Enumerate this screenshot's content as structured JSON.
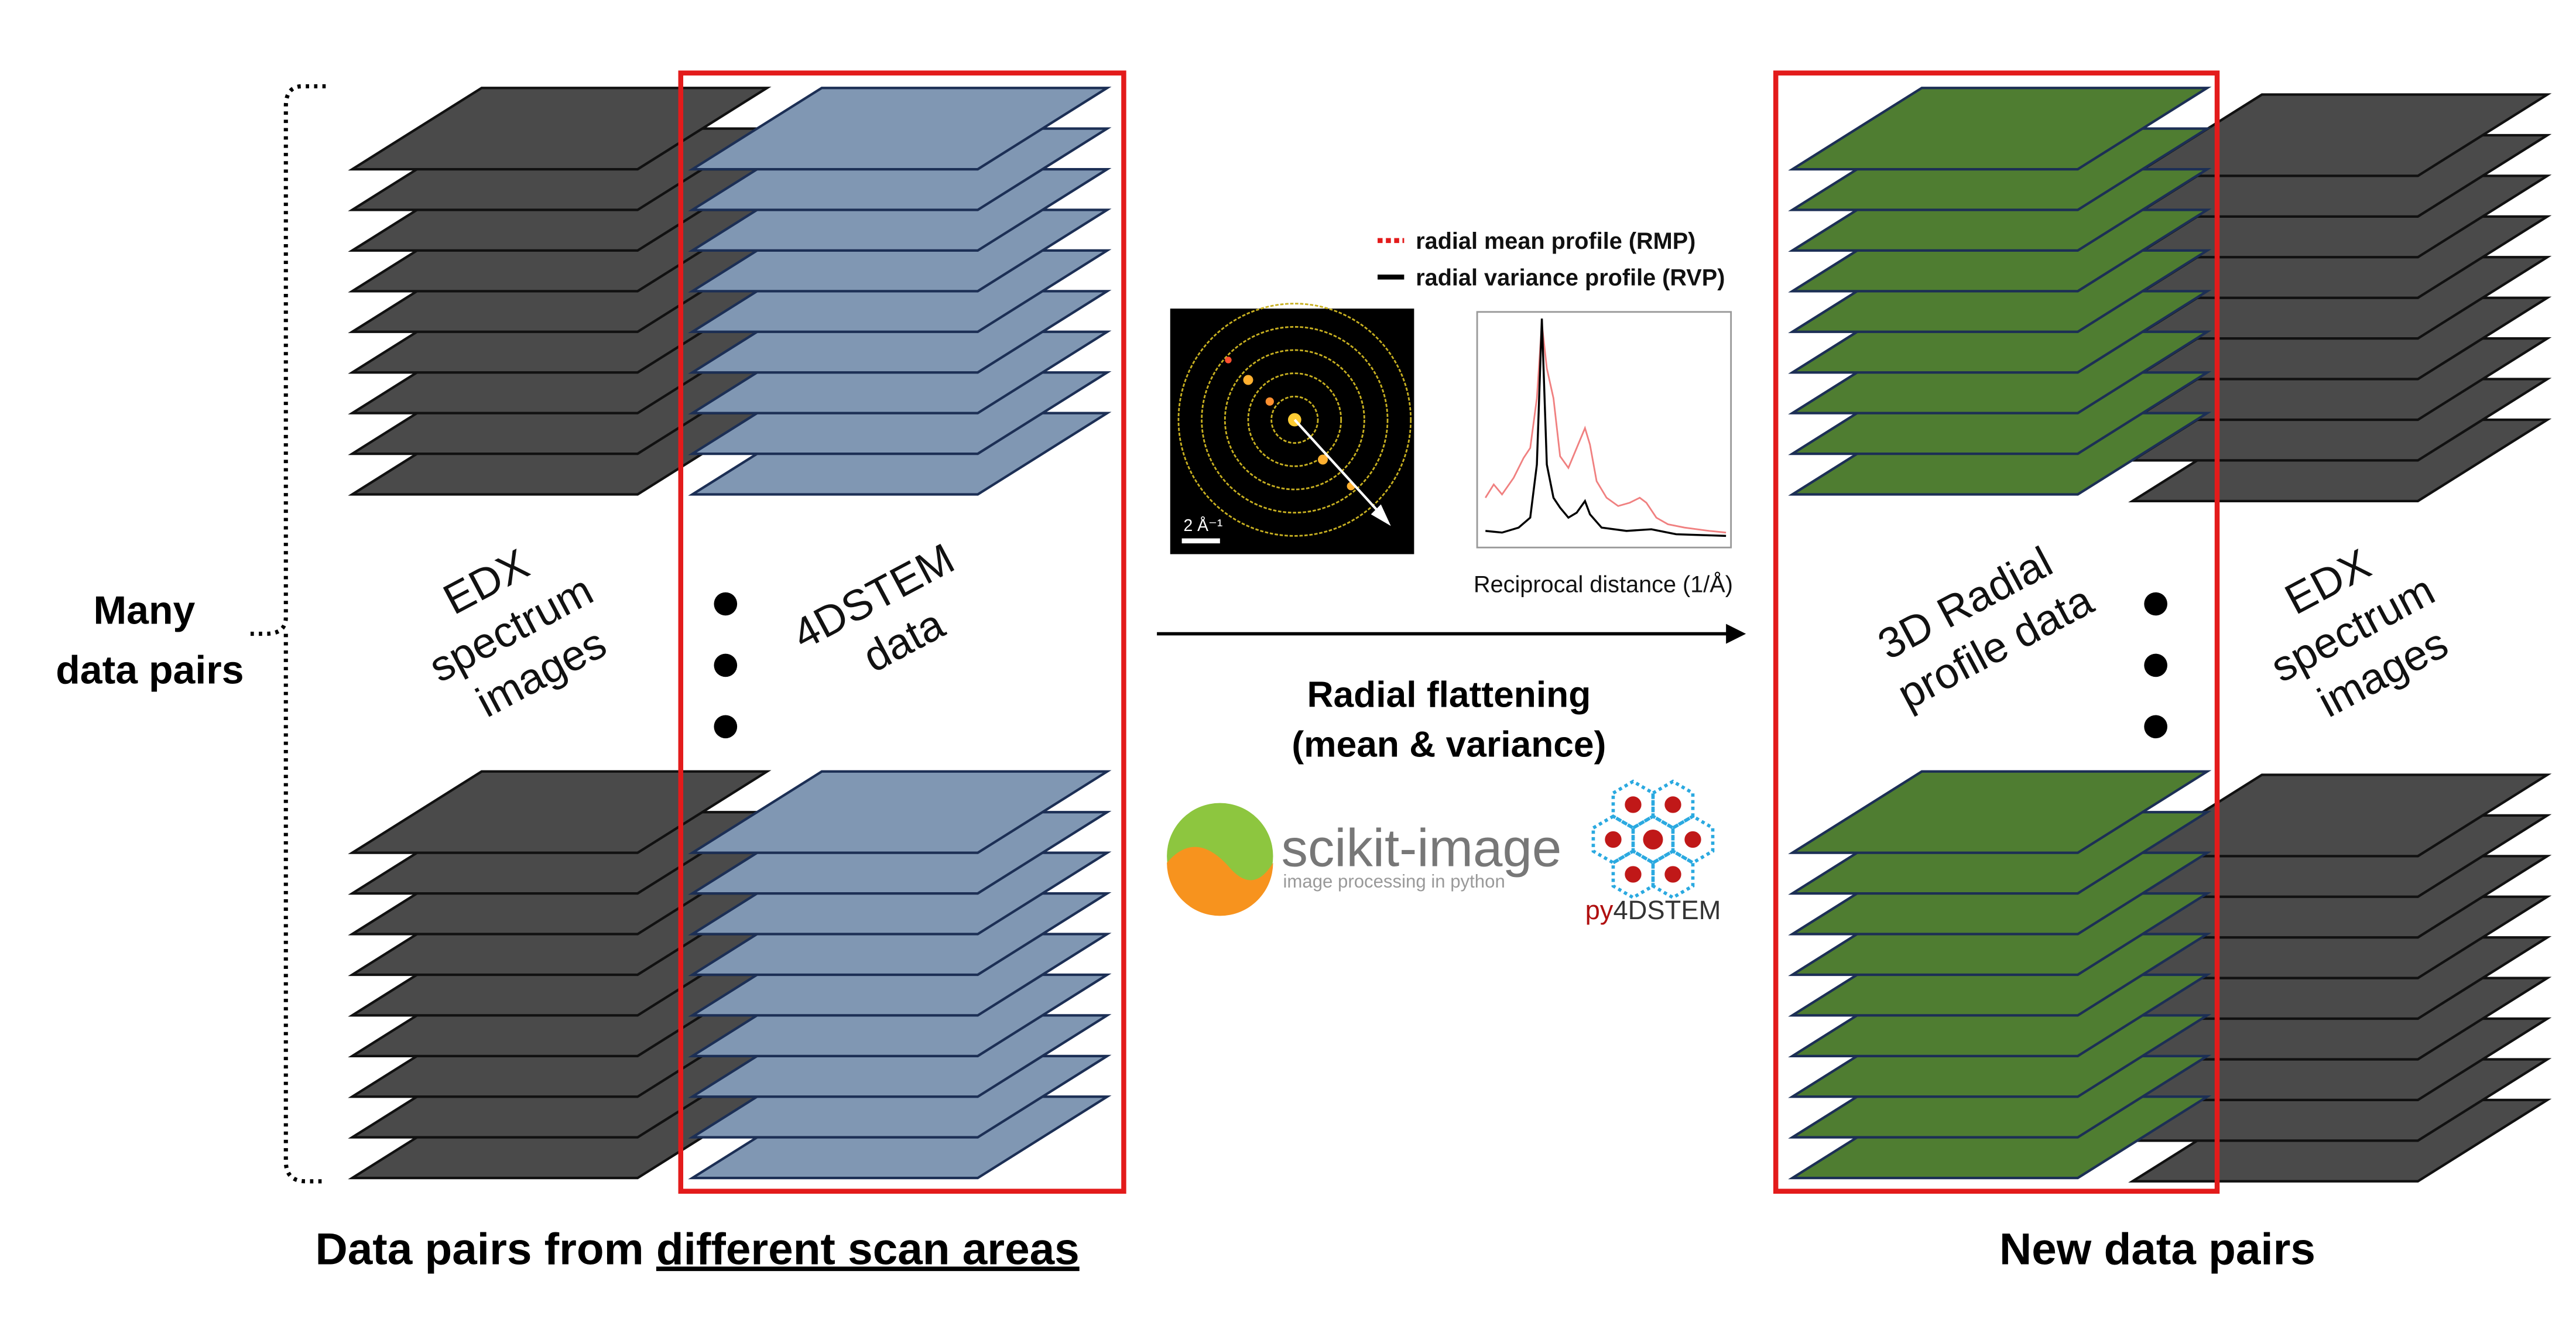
{
  "left_group": {
    "side_label": [
      "Many",
      "data pairs"
    ],
    "edx_label": [
      "EDX",
      "spectrum",
      "images"
    ],
    "fourdstem_label": [
      "4DSTEM",
      "data"
    ],
    "caption": {
      "prefix": "Data pairs from ",
      "underlined": "different scan areas"
    }
  },
  "process": {
    "legend": [
      "radial mean profile (RMP)",
      "radial variance profile (RVP)"
    ],
    "scale_bar": "2 Å⁻¹",
    "x_axis_label": "Reciprocal distance (1/Å)",
    "title": [
      "Radial flattening",
      "(mean & variance)"
    ],
    "scikit_image": {
      "name": "scikit-image",
      "tagline": "image processing in python"
    },
    "py4dstem": {
      "prefix": "py",
      "suffix": "4DSTEM"
    }
  },
  "right_group": {
    "radial_label": [
      "3D Radial",
      "profile data"
    ],
    "edx_label": [
      "EDX",
      "spectrum",
      "images"
    ],
    "caption": "New data pairs"
  }
}
